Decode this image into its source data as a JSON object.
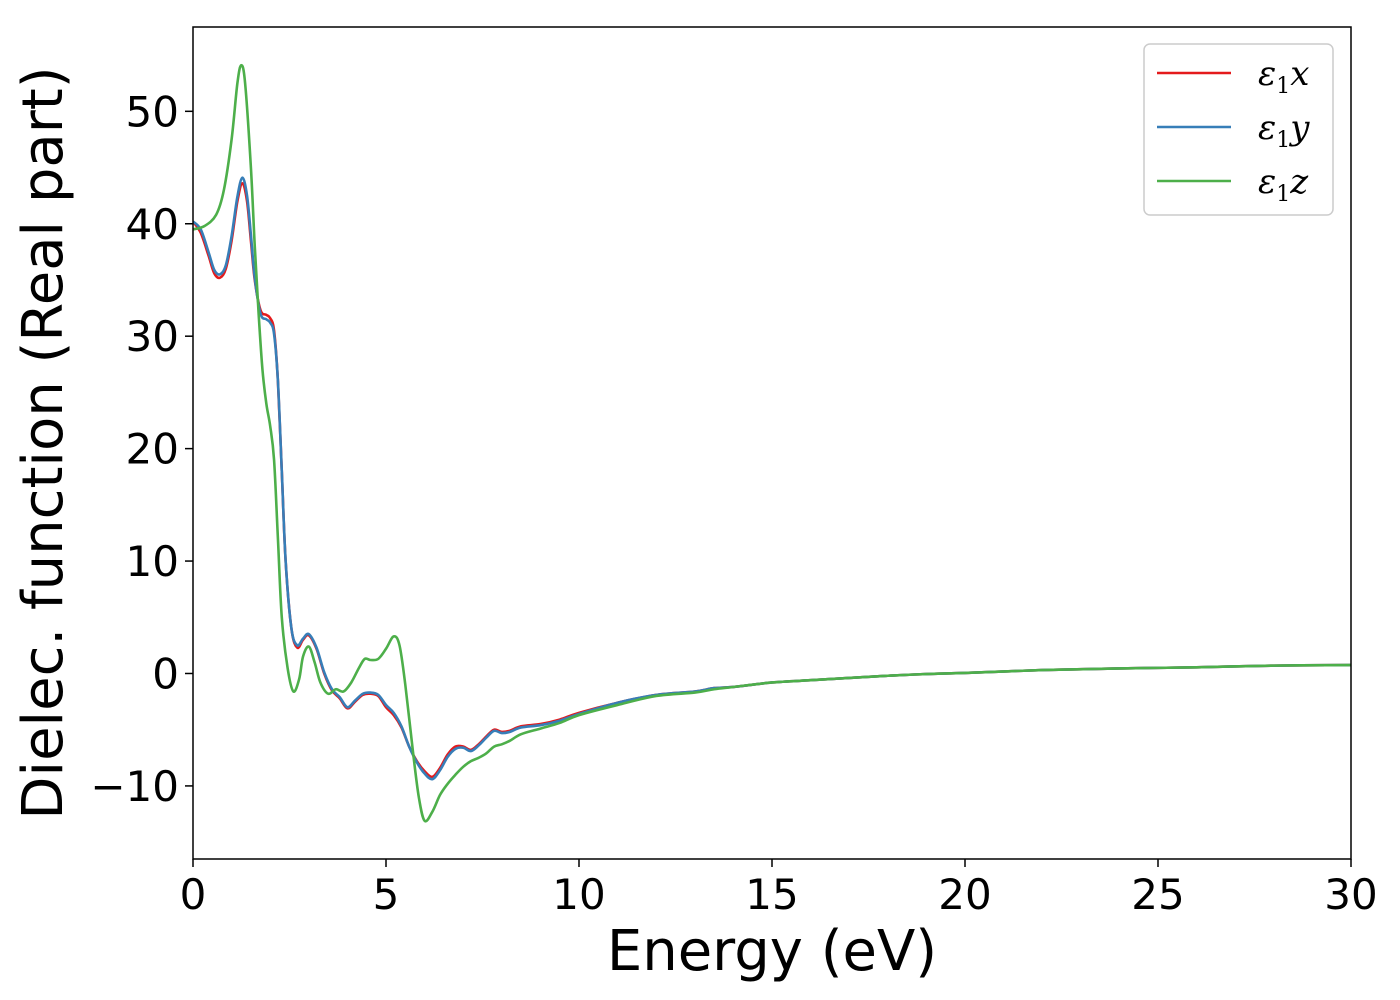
{
  "chart_data": {
    "type": "line",
    "xlabel": "Energy (eV)",
    "ylabel": "Dielec. function (Real part)",
    "xlim": [
      0,
      30
    ],
    "ylim": [
      -16.5,
      57.5
    ],
    "xticks": [
      0,
      5,
      10,
      15,
      20,
      25,
      30
    ],
    "xtick_labels": [
      "0",
      "5",
      "10",
      "15",
      "20",
      "25",
      "30"
    ],
    "yticks": [
      -10,
      0,
      10,
      20,
      30,
      40,
      50
    ],
    "ytick_labels": [
      "−10",
      "0",
      "10",
      "20",
      "30",
      "40",
      "50"
    ],
    "grid": false,
    "legend_position": "top-right",
    "series": [
      {
        "name": "ε1x",
        "label_main": "ε",
        "label_sub": "1",
        "label_tail": "x",
        "color": "#e41a1c",
        "points": [
          [
            0,
            40.2
          ],
          [
            0.2,
            39.2
          ],
          [
            0.4,
            37.2
          ],
          [
            0.55,
            35.6
          ],
          [
            0.7,
            35.2
          ],
          [
            0.85,
            36.0
          ],
          [
            1.0,
            38.5
          ],
          [
            1.15,
            42.0
          ],
          [
            1.28,
            43.6
          ],
          [
            1.4,
            42.0
          ],
          [
            1.5,
            38.5
          ],
          [
            1.6,
            35.0
          ],
          [
            1.75,
            32.3
          ],
          [
            1.9,
            31.9
          ],
          [
            2.0,
            31.6
          ],
          [
            2.1,
            30.5
          ],
          [
            2.2,
            26.0
          ],
          [
            2.3,
            18.0
          ],
          [
            2.4,
            10.0
          ],
          [
            2.55,
            4.0
          ],
          [
            2.7,
            2.3
          ],
          [
            2.85,
            3.0
          ],
          [
            3.0,
            3.4
          ],
          [
            3.2,
            2.2
          ],
          [
            3.4,
            0.0
          ],
          [
            3.6,
            -1.5
          ],
          [
            3.8,
            -2.2
          ],
          [
            4.0,
            -3.1
          ],
          [
            4.2,
            -2.5
          ],
          [
            4.4,
            -1.9
          ],
          [
            4.6,
            -1.8
          ],
          [
            4.8,
            -2.0
          ],
          [
            5.0,
            -3.0
          ],
          [
            5.2,
            -3.7
          ],
          [
            5.4,
            -4.8
          ],
          [
            5.6,
            -6.5
          ],
          [
            5.8,
            -7.8
          ],
          [
            6.0,
            -8.7
          ],
          [
            6.2,
            -9.2
          ],
          [
            6.4,
            -8.4
          ],
          [
            6.6,
            -7.2
          ],
          [
            6.8,
            -6.5
          ],
          [
            7.0,
            -6.5
          ],
          [
            7.2,
            -6.8
          ],
          [
            7.4,
            -6.3
          ],
          [
            7.6,
            -5.6
          ],
          [
            7.8,
            -5.0
          ],
          [
            8.0,
            -5.2
          ],
          [
            8.2,
            -5.1
          ],
          [
            8.5,
            -4.7
          ],
          [
            9.0,
            -4.5
          ],
          [
            9.5,
            -4.1
          ],
          [
            10.0,
            -3.5
          ],
          [
            11.0,
            -2.6
          ],
          [
            12.0,
            -1.9
          ],
          [
            13.0,
            -1.6
          ],
          [
            13.5,
            -1.3
          ],
          [
            14.0,
            -1.2
          ],
          [
            15.0,
            -0.8
          ],
          [
            16.0,
            -0.6
          ],
          [
            17.0,
            -0.4
          ],
          [
            18.0,
            -0.2
          ],
          [
            19.0,
            -0.05
          ],
          [
            20.0,
            0.05
          ],
          [
            22.0,
            0.3
          ],
          [
            24.0,
            0.45
          ],
          [
            26.0,
            0.55
          ],
          [
            28.0,
            0.7
          ],
          [
            30.0,
            0.75
          ]
        ]
      },
      {
        "name": "ε1y",
        "label_main": "ε",
        "label_sub": "1",
        "label_tail": "y",
        "color": "#377eb8",
        "points": [
          [
            0,
            40.2
          ],
          [
            0.2,
            39.5
          ],
          [
            0.4,
            37.5
          ],
          [
            0.55,
            35.9
          ],
          [
            0.7,
            35.5
          ],
          [
            0.85,
            36.3
          ],
          [
            1.0,
            38.9
          ],
          [
            1.15,
            42.4
          ],
          [
            1.28,
            44.1
          ],
          [
            1.4,
            42.5
          ],
          [
            1.5,
            39.0
          ],
          [
            1.6,
            35.2
          ],
          [
            1.75,
            32.0
          ],
          [
            1.9,
            31.5
          ],
          [
            2.0,
            31.2
          ],
          [
            2.1,
            30.2
          ],
          [
            2.2,
            26.0
          ],
          [
            2.3,
            18.0
          ],
          [
            2.4,
            10.0
          ],
          [
            2.55,
            4.0
          ],
          [
            2.7,
            2.5
          ],
          [
            2.85,
            3.1
          ],
          [
            3.0,
            3.5
          ],
          [
            3.2,
            2.3
          ],
          [
            3.4,
            0.1
          ],
          [
            3.6,
            -1.4
          ],
          [
            3.8,
            -2.1
          ],
          [
            4.0,
            -3.0
          ],
          [
            4.2,
            -2.4
          ],
          [
            4.4,
            -1.8
          ],
          [
            4.6,
            -1.7
          ],
          [
            4.8,
            -1.9
          ],
          [
            5.0,
            -2.8
          ],
          [
            5.2,
            -3.5
          ],
          [
            5.4,
            -4.7
          ],
          [
            5.6,
            -6.5
          ],
          [
            5.8,
            -7.9
          ],
          [
            6.0,
            -8.9
          ],
          [
            6.2,
            -9.4
          ],
          [
            6.4,
            -8.6
          ],
          [
            6.6,
            -7.4
          ],
          [
            6.8,
            -6.7
          ],
          [
            7.0,
            -6.6
          ],
          [
            7.2,
            -6.9
          ],
          [
            7.4,
            -6.4
          ],
          [
            7.6,
            -5.7
          ],
          [
            7.8,
            -5.1
          ],
          [
            8.0,
            -5.3
          ],
          [
            8.2,
            -5.2
          ],
          [
            8.5,
            -4.8
          ],
          [
            9.0,
            -4.6
          ],
          [
            9.5,
            -4.2
          ],
          [
            10.0,
            -3.6
          ],
          [
            11.0,
            -2.6
          ],
          [
            12.0,
            -1.9
          ],
          [
            13.0,
            -1.6
          ],
          [
            13.5,
            -1.3
          ],
          [
            14.0,
            -1.2
          ],
          [
            15.0,
            -0.8
          ],
          [
            16.0,
            -0.6
          ],
          [
            17.0,
            -0.4
          ],
          [
            18.0,
            -0.2
          ],
          [
            19.0,
            -0.05
          ],
          [
            20.0,
            0.05
          ],
          [
            22.0,
            0.3
          ],
          [
            24.0,
            0.45
          ],
          [
            26.0,
            0.55
          ],
          [
            28.0,
            0.7
          ],
          [
            30.0,
            0.75
          ]
        ]
      },
      {
        "name": "ε1z",
        "label_main": "ε",
        "label_sub": "1",
        "label_tail": "z",
        "color": "#4daf4a",
        "points": [
          [
            0,
            39.5
          ],
          [
            0.3,
            39.8
          ],
          [
            0.6,
            40.8
          ],
          [
            0.8,
            43.0
          ],
          [
            1.0,
            47.5
          ],
          [
            1.15,
            52.5
          ],
          [
            1.25,
            54.1
          ],
          [
            1.35,
            52.5
          ],
          [
            1.5,
            45.0
          ],
          [
            1.6,
            38.0
          ],
          [
            1.7,
            32.0
          ],
          [
            1.8,
            27.0
          ],
          [
            1.9,
            24.0
          ],
          [
            2.0,
            22.0
          ],
          [
            2.1,
            19.0
          ],
          [
            2.2,
            12.0
          ],
          [
            2.3,
            5.0
          ],
          [
            2.45,
            0.5
          ],
          [
            2.6,
            -1.6
          ],
          [
            2.75,
            -0.5
          ],
          [
            2.85,
            1.5
          ],
          [
            3.0,
            2.4
          ],
          [
            3.15,
            1.0
          ],
          [
            3.3,
            -0.8
          ],
          [
            3.5,
            -1.8
          ],
          [
            3.7,
            -1.4
          ],
          [
            3.9,
            -1.6
          ],
          [
            4.1,
            -0.8
          ],
          [
            4.3,
            0.5
          ],
          [
            4.45,
            1.3
          ],
          [
            4.6,
            1.2
          ],
          [
            4.8,
            1.3
          ],
          [
            5.0,
            2.2
          ],
          [
            5.2,
            3.3
          ],
          [
            5.35,
            2.5
          ],
          [
            5.5,
            -1.0
          ],
          [
            5.7,
            -7.0
          ],
          [
            5.85,
            -11.0
          ],
          [
            6.0,
            -13.1
          ],
          [
            6.2,
            -12.3
          ],
          [
            6.4,
            -10.8
          ],
          [
            6.6,
            -9.8
          ],
          [
            6.8,
            -9.0
          ],
          [
            7.0,
            -8.3
          ],
          [
            7.2,
            -7.8
          ],
          [
            7.4,
            -7.5
          ],
          [
            7.6,
            -7.1
          ],
          [
            7.8,
            -6.5
          ],
          [
            8.0,
            -6.3
          ],
          [
            8.2,
            -6.0
          ],
          [
            8.5,
            -5.4
          ],
          [
            9.0,
            -4.9
          ],
          [
            9.5,
            -4.4
          ],
          [
            10.0,
            -3.7
          ],
          [
            11.0,
            -2.8
          ],
          [
            12.0,
            -2.0
          ],
          [
            13.0,
            -1.7
          ],
          [
            13.5,
            -1.4
          ],
          [
            14.0,
            -1.2
          ],
          [
            15.0,
            -0.8
          ],
          [
            16.0,
            -0.6
          ],
          [
            17.0,
            -0.4
          ],
          [
            18.0,
            -0.2
          ],
          [
            19.0,
            -0.05
          ],
          [
            20.0,
            0.05
          ],
          [
            22.0,
            0.3
          ],
          [
            24.0,
            0.45
          ],
          [
            26.0,
            0.55
          ],
          [
            28.0,
            0.7
          ],
          [
            30.0,
            0.75
          ]
        ]
      }
    ]
  }
}
